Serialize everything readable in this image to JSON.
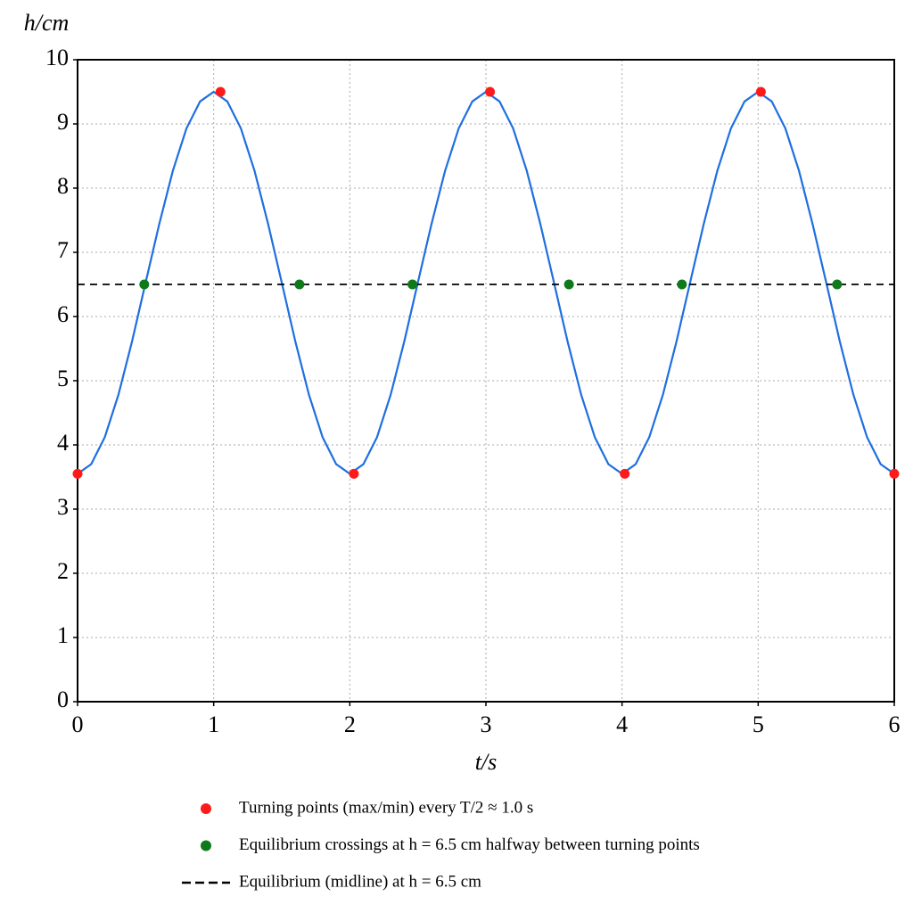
{
  "chart_data": {
    "type": "line",
    "xlabel": "t/s",
    "ylabel": "h/cm",
    "xlim": [
      0,
      6
    ],
    "ylim": [
      0,
      10
    ],
    "xticks": [
      0,
      1,
      2,
      3,
      4,
      5,
      6
    ],
    "yticks": [
      0,
      1,
      2,
      3,
      4,
      5,
      6,
      7,
      8,
      9,
      10
    ],
    "grid": true,
    "legend": "bottom",
    "series": [
      {
        "color": "#1f6fe0",
        "type": "line",
        "x": [
          0,
          0.1,
          0.2,
          0.3,
          0.4,
          0.5,
          0.6,
          0.7,
          0.8,
          0.9,
          1,
          1.1,
          1.2,
          1.3,
          1.4,
          1.5,
          1.6,
          1.7,
          1.8,
          1.9,
          2,
          2.1,
          2.2,
          2.3,
          2.4,
          2.5,
          2.6,
          2.7,
          2.8,
          2.9,
          3,
          3.1,
          3.2,
          3.3,
          3.4,
          3.5,
          3.6,
          3.7,
          3.8,
          3.9,
          4,
          4.1,
          4.2,
          4.3,
          4.4,
          4.5,
          4.6,
          4.7,
          4.8,
          4.9,
          5,
          5.1,
          5.2,
          5.3,
          5.4,
          5.5,
          5.6,
          5.7,
          5.8,
          5.9,
          6
        ],
        "values": [
          3.55,
          3.7,
          4.12,
          4.78,
          5.61,
          6.53,
          7.44,
          8.27,
          8.93,
          9.35,
          9.5,
          9.35,
          8.93,
          8.27,
          7.44,
          6.53,
          5.61,
          4.78,
          4.12,
          3.7,
          3.55,
          3.7,
          4.12,
          4.78,
          5.61,
          6.53,
          7.44,
          8.27,
          8.93,
          9.35,
          9.5,
          9.35,
          8.93,
          8.27,
          7.44,
          6.53,
          5.61,
          4.78,
          4.12,
          3.7,
          3.55,
          3.7,
          4.12,
          4.78,
          5.61,
          6.53,
          7.44,
          8.27,
          8.93,
          9.35,
          9.5,
          9.35,
          8.93,
          8.27,
          7.44,
          6.53,
          5.61,
          4.78,
          4.12,
          3.7,
          3.55
        ]
      },
      {
        "name": "Turning points (max/min) every T/2 ≈ 1.0 s",
        "color": "#ff1a1a",
        "type": "scatter",
        "x": [
          0,
          1.05,
          2.03,
          3.03,
          4.02,
          5.02,
          6
        ],
        "values": [
          3.55,
          9.5,
          3.55,
          9.5,
          3.55,
          9.5,
          3.55
        ]
      },
      {
        "name": "Equilibrium crossings at h = 6.5 cm halfway between turning points",
        "color": "#0f7a1a",
        "type": "scatter",
        "x": [
          0.49,
          1.63,
          2.46,
          3.61,
          4.44,
          5.58
        ],
        "values": [
          6.5,
          6.5,
          6.5,
          6.5,
          6.5,
          6.5
        ]
      },
      {
        "name": "Equilibrium (midline) at h = 6.5 cm",
        "color": "#000000",
        "type": "line",
        "dash": true,
        "x": [
          0,
          6
        ],
        "values": [
          6.5,
          6.5
        ]
      }
    ]
  }
}
